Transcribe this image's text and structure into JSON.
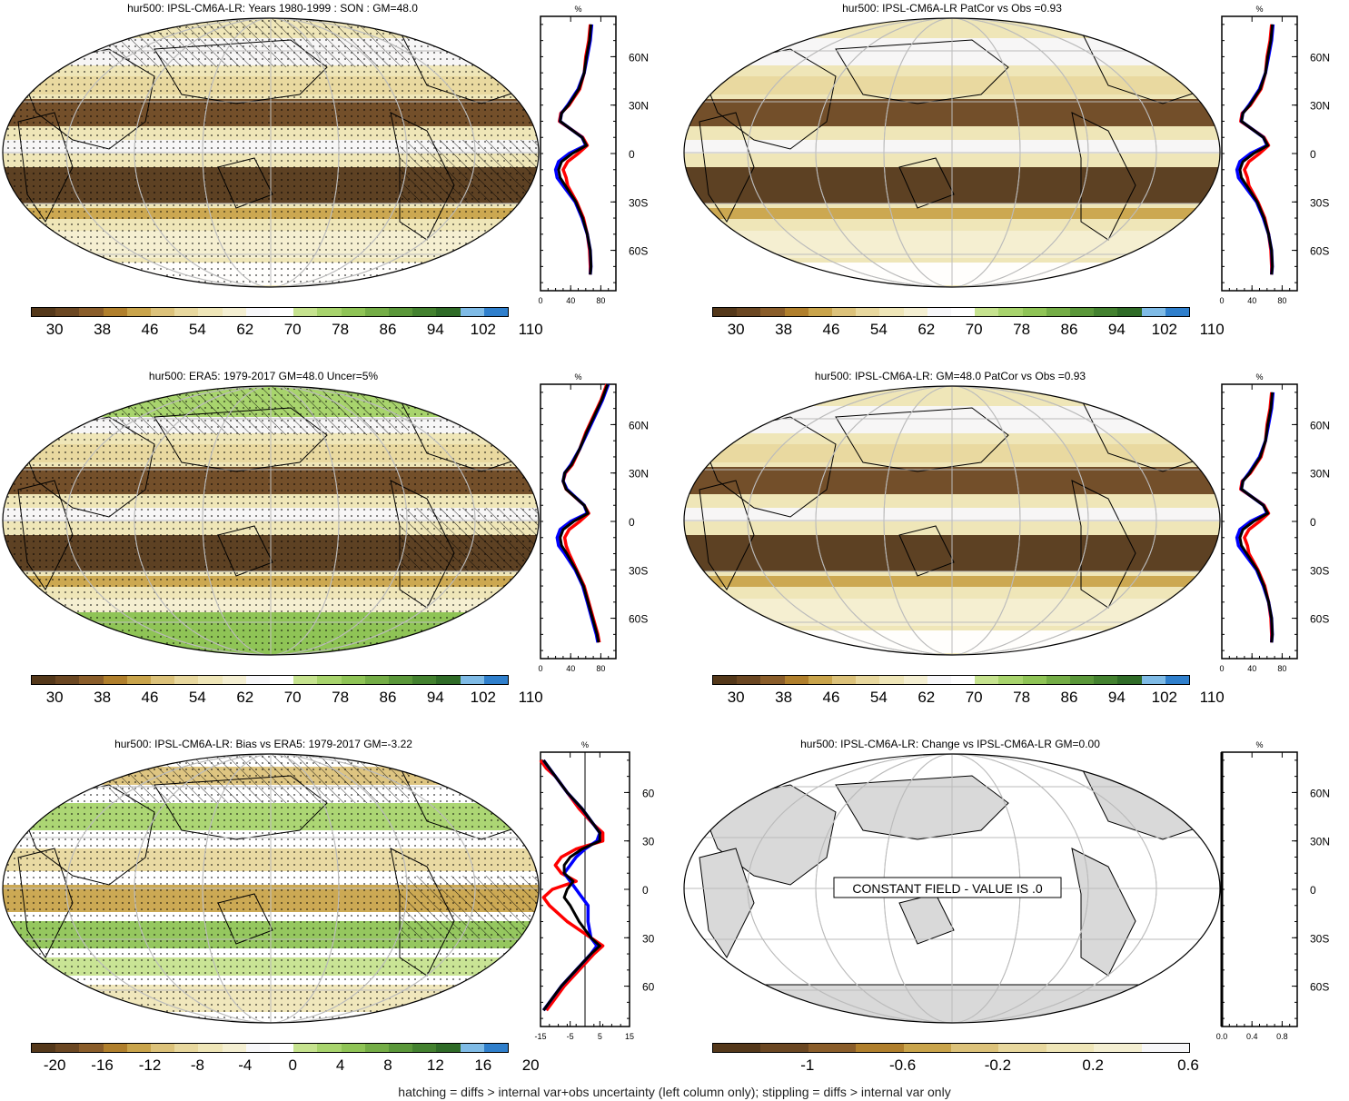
{
  "footer": "hatching = diffs > internal var+obs uncertainty (left column only); stippling = diffs > internal var only",
  "palettes": {
    "abs": [
      "#54381a",
      "#6b4722",
      "#8a5d2a",
      "#b07f2c",
      "#c9a44b",
      "#dcc27a",
      "#e8d89e",
      "#efe6b8",
      "#f4efd2",
      "#f7f7f9",
      "#ffffff",
      "#c6e38f",
      "#a8d46d",
      "#8fc456",
      "#74ad46",
      "#5a9739",
      "#43812f",
      "#2f6b27",
      "#7fbbe6",
      "#2f7fcc"
    ],
    "bias": [
      "#54381a",
      "#6b4722",
      "#8a5d2a",
      "#b07f2c",
      "#c9a44b",
      "#dcc27a",
      "#e8d89e",
      "#efe6b8",
      "#f4efd2",
      "#f7f7f9",
      "#ffffff",
      "#c6e38f",
      "#a8d46d",
      "#8fc456",
      "#74ad46",
      "#5a9739",
      "#43812f",
      "#2f6b27",
      "#7fbbe6",
      "#2f7fcc"
    ],
    "change": [
      "#54381a",
      "#6b4722",
      "#8a5d2a",
      "#b07f2c",
      "#c9a44b",
      "#dcc27a",
      "#e8d89e",
      "#efe6b8",
      "#f4efd2",
      "#f7f7f9"
    ]
  },
  "colors": {
    "model": "#0000ff",
    "obs": "#ff0000",
    "mean": "#000000",
    "land": "#d9d9d9"
  },
  "panels": [
    {
      "id": "p1",
      "title": "hur500: IPSL-CM6A-LR: Years 1980-1999 : SON : GM=48.0",
      "map_style": "field",
      "colorbar_labels": [
        "30",
        "38",
        "46",
        "54",
        "62",
        "70",
        "78",
        "86",
        "94",
        "102",
        "110"
      ],
      "palette": "abs",
      "profile": {
        "unit": "%",
        "x_ticks": [
          "0",
          "40",
          "80"
        ],
        "xlim": [
          0,
          100
        ],
        "zero_line": null,
        "lat_labels": [
          "60N",
          "30N",
          "0",
          "30S",
          "60S"
        ],
        "series": [
          {
            "name": "model",
            "lat": [
              80,
              70,
              60,
              50,
              40,
              30,
              25,
              20,
              10,
              5,
              0,
              -5,
              -10,
              -15,
              -20,
              -30,
              -40,
              -50,
              -60,
              -70,
              -75
            ],
            "values": [
              68,
              66,
              62,
              58,
              50,
              36,
              28,
              26,
              55,
              60,
              38,
              24,
              20,
              22,
              30,
              46,
              55,
              62,
              66,
              67,
              66
            ]
          },
          {
            "name": "obs",
            "lat": [
              80,
              70,
              60,
              50,
              40,
              30,
              25,
              20,
              10,
              5,
              0,
              -5,
              -10,
              -15,
              -20,
              -30,
              -40,
              -50,
              -60,
              -70,
              -75
            ],
            "values": [
              66,
              64,
              60,
              58,
              52,
              38,
              27,
              25,
              56,
              62,
              50,
              36,
              30,
              34,
              36,
              48,
              57,
              62,
              65,
              66,
              66
            ]
          },
          {
            "name": "mean",
            "lat": [
              80,
              70,
              60,
              50,
              40,
              30,
              25,
              20,
              10,
              5,
              0,
              -5,
              -10,
              -15,
              -20,
              -30,
              -40,
              -50,
              -60,
              -70,
              -75
            ],
            "values": [
              67,
              65,
              61,
              58,
              51,
              37,
              28,
              26,
              55,
              61,
              42,
              28,
              24,
              26,
              33,
              47,
              56,
              62,
              66,
              67,
              66
            ]
          }
        ]
      }
    },
    {
      "id": "p2",
      "title": "hur500: IPSL-CM6A-LR PatCor vs Obs =0.93",
      "map_style": "field",
      "colorbar_labels": [
        "30",
        "38",
        "46",
        "54",
        "62",
        "70",
        "78",
        "86",
        "94",
        "102",
        "110"
      ],
      "palette": "abs",
      "profile": {
        "unit": "%",
        "x_ticks": [
          "0",
          "40",
          "80"
        ],
        "xlim": [
          0,
          100
        ],
        "zero_line": null,
        "lat_labels": [
          "60N",
          "30N",
          "0",
          "30S",
          "60S"
        ],
        "series": [
          {
            "name": "model",
            "lat": [
              80,
              70,
              60,
              50,
              40,
              30,
              25,
              20,
              10,
              5,
              0,
              -5,
              -10,
              -15,
              -20,
              -30,
              -40,
              -50,
              -60,
              -70,
              -75
            ],
            "values": [
              68,
              66,
              62,
              58,
              50,
              36,
              28,
              26,
              55,
              60,
              38,
              24,
              20,
              22,
              30,
              46,
              55,
              62,
              66,
              67,
              66
            ]
          },
          {
            "name": "obs",
            "lat": [
              80,
              70,
              60,
              50,
              40,
              30,
              25,
              20,
              10,
              5,
              0,
              -5,
              -10,
              -15,
              -20,
              -30,
              -40,
              -50,
              -60,
              -70,
              -75
            ],
            "values": [
              66,
              64,
              60,
              58,
              52,
              38,
              27,
              25,
              56,
              62,
              50,
              36,
              30,
              34,
              36,
              48,
              57,
              62,
              65,
              66,
              66
            ]
          },
          {
            "name": "mean",
            "lat": [
              80,
              70,
              60,
              50,
              40,
              30,
              25,
              20,
              10,
              5,
              0,
              -5,
              -10,
              -15,
              -20,
              -30,
              -40,
              -50,
              -60,
              -70,
              -75
            ],
            "values": [
              67,
              65,
              61,
              58,
              51,
              37,
              28,
              26,
              55,
              61,
              42,
              28,
              24,
              26,
              33,
              47,
              56,
              62,
              66,
              67,
              66
            ]
          }
        ]
      }
    },
    {
      "id": "p3",
      "title": "hur500: ERA5: 1979-2017 GM=48.0 Uncer=5%",
      "map_style": "field",
      "colorbar_labels": [
        "30",
        "38",
        "46",
        "54",
        "62",
        "70",
        "78",
        "86",
        "94",
        "102",
        "110"
      ],
      "palette": "abs",
      "profile": {
        "unit": "%",
        "x_ticks": [
          "0",
          "40",
          "80"
        ],
        "xlim": [
          0,
          100
        ],
        "zero_line": null,
        "lat_labels": [
          "60N",
          "30N",
          "0",
          "30S",
          "60S"
        ],
        "series": [
          {
            "name": "model",
            "lat": [
              85,
              75,
              65,
              55,
              45,
              35,
              30,
              25,
              20,
              10,
              5,
              0,
              -5,
              -10,
              -15,
              -20,
              -30,
              -40,
              -50,
              -60,
              -70,
              -75
            ],
            "values": [
              90,
              82,
              72,
              62,
              52,
              40,
              32,
              30,
              35,
              58,
              62,
              40,
              26,
              22,
              24,
              32,
              46,
              56,
              62,
              68,
              74,
              76
            ]
          },
          {
            "name": "obs",
            "lat": [
              85,
              75,
              65,
              55,
              45,
              35,
              30,
              25,
              20,
              10,
              5,
              0,
              -5,
              -10,
              -15,
              -20,
              -30,
              -40,
              -50,
              -60,
              -70,
              -75
            ],
            "values": [
              88,
              80,
              70,
              60,
              52,
              42,
              33,
              30,
              34,
              58,
              64,
              52,
              38,
              32,
              34,
              38,
              48,
              58,
              64,
              70,
              76,
              78
            ]
          },
          {
            "name": "mean",
            "lat": [
              85,
              75,
              65,
              55,
              45,
              35,
              30,
              25,
              20,
              10,
              5,
              0,
              -5,
              -10,
              -15,
              -20,
              -30,
              -40,
              -50,
              -60,
              -70,
              -75
            ],
            "values": [
              89,
              81,
              71,
              61,
              52,
              41,
              32,
              30,
              34,
              58,
              63,
              44,
              30,
              26,
              28,
              35,
              47,
              57,
              63,
              69,
              75,
              77
            ]
          }
        ]
      }
    },
    {
      "id": "p4",
      "title": "hur500: IPSL-CM6A-LR: GM=48.0 PatCor vs Obs =0.93",
      "map_style": "field",
      "colorbar_labels": [
        "30",
        "38",
        "46",
        "54",
        "62",
        "70",
        "78",
        "86",
        "94",
        "102",
        "110"
      ],
      "palette": "abs",
      "profile": {
        "unit": "%",
        "x_ticks": [
          "0",
          "40",
          "80"
        ],
        "xlim": [
          0,
          100
        ],
        "zero_line": null,
        "lat_labels": [
          "60N",
          "30N",
          "0",
          "30S",
          "60S"
        ],
        "series": [
          {
            "name": "model",
            "lat": [
              80,
              70,
              60,
              50,
              40,
              30,
              25,
              20,
              10,
              5,
              0,
              -5,
              -10,
              -15,
              -20,
              -30,
              -40,
              -50,
              -60,
              -70,
              -75
            ],
            "values": [
              68,
              66,
              62,
              58,
              50,
              36,
              28,
              26,
              55,
              60,
              38,
              24,
              20,
              22,
              30,
              46,
              55,
              62,
              66,
              67,
              66
            ]
          },
          {
            "name": "obs",
            "lat": [
              80,
              70,
              60,
              50,
              40,
              30,
              25,
              20,
              10,
              5,
              0,
              -5,
              -10,
              -15,
              -20,
              -30,
              -40,
              -50,
              -60,
              -70,
              -75
            ],
            "values": [
              66,
              64,
              60,
              58,
              52,
              38,
              27,
              25,
              56,
              62,
              50,
              36,
              30,
              34,
              36,
              48,
              57,
              62,
              65,
              66,
              66
            ]
          },
          {
            "name": "mean",
            "lat": [
              80,
              70,
              60,
              50,
              40,
              30,
              25,
              20,
              10,
              5,
              0,
              -5,
              -10,
              -15,
              -20,
              -30,
              -40,
              -50,
              -60,
              -70,
              -75
            ],
            "values": [
              67,
              65,
              61,
              58,
              51,
              37,
              28,
              26,
              55,
              61,
              42,
              28,
              24,
              26,
              33,
              47,
              56,
              62,
              66,
              67,
              66
            ]
          }
        ]
      }
    },
    {
      "id": "p5",
      "title": "hur500: IPSL-CM6A-LR: Bias vs ERA5: 1979-2017  GM=-3.22",
      "map_style": "bias",
      "colorbar_labels": [
        "-20",
        "-16",
        "-12",
        "-8",
        "-4",
        "0",
        "4",
        "8",
        "12",
        "16",
        "20"
      ],
      "palette": "bias",
      "profile": {
        "unit": "%",
        "x_ticks": [
          "-15",
          "-5",
          "5",
          "15"
        ],
        "xlim": [
          -15,
          15
        ],
        "zero_line": 0,
        "lat_labels": [
          "60N",
          "30N",
          "0",
          "30S",
          "60S"
        ],
        "series": [
          {
            "name": "model",
            "lat": [
              80,
              75,
              70,
              60,
              50,
              40,
              35,
              30,
              25,
              20,
              15,
              10,
              5,
              0,
              -5,
              -10,
              -20,
              -30,
              -35,
              -40,
              -50,
              -60,
              -70,
              -75
            ],
            "values": [
              -14,
              -12,
              -10,
              -6,
              -1,
              3,
              5,
              4,
              0,
              -3,
              -5,
              -7,
              -5,
              -3,
              -1,
              1,
              1,
              2,
              4,
              2,
              -3,
              -8,
              -12,
              -14
            ]
          },
          {
            "name": "obs",
            "lat": [
              80,
              75,
              70,
              60,
              50,
              40,
              35,
              30,
              25,
              20,
              15,
              10,
              5,
              0,
              -5,
              -10,
              -20,
              -30,
              -35,
              -40,
              -50,
              -60,
              -70,
              -75
            ],
            "values": [
              -15,
              -13,
              -10,
              -6,
              -2,
              3,
              6,
              6,
              -3,
              -8,
              -10,
              -8,
              -3,
              -11,
              -14,
              -12,
              -6,
              2,
              6,
              3,
              -2,
              -7,
              -11,
              -13
            ]
          },
          {
            "name": "mean",
            "lat": [
              80,
              75,
              70,
              60,
              50,
              40,
              35,
              30,
              25,
              20,
              15,
              10,
              5,
              0,
              -5,
              -10,
              -20,
              -30,
              -35,
              -40,
              -50,
              -60,
              -70,
              -75
            ],
            "values": [
              -14,
              -12,
              -10,
              -6,
              -1,
              3,
              5,
              5,
              -1,
              -5,
              -7,
              -7,
              -4,
              -6,
              -7,
              -5,
              -2,
              2,
              5,
              2,
              -3,
              -8,
              -12,
              -14
            ]
          }
        ]
      }
    },
    {
      "id": "p6",
      "title": "hur500: IPSL-CM6A-LR: Change vs IPSL-CM6A-LR GM=0.00",
      "map_style": "constant",
      "constant_label": "CONSTANT FIELD - VALUE IS .0",
      "colorbar_labels": [
        "-1",
        "-0.6",
        "-0.2",
        "0.2",
        "0.6"
      ],
      "palette": "change",
      "profile": {
        "unit": "%",
        "x_ticks": [
          "0.0",
          "0.4",
          "0.8"
        ],
        "xlim": [
          0,
          1
        ],
        "zero_line": null,
        "lat_labels": [
          "60N",
          "30N",
          "0",
          "30S",
          "60S"
        ],
        "series": [
          {
            "name": "mean",
            "lat": [
              85,
              -85
            ],
            "values": [
              0,
              0
            ]
          }
        ]
      }
    }
  ]
}
